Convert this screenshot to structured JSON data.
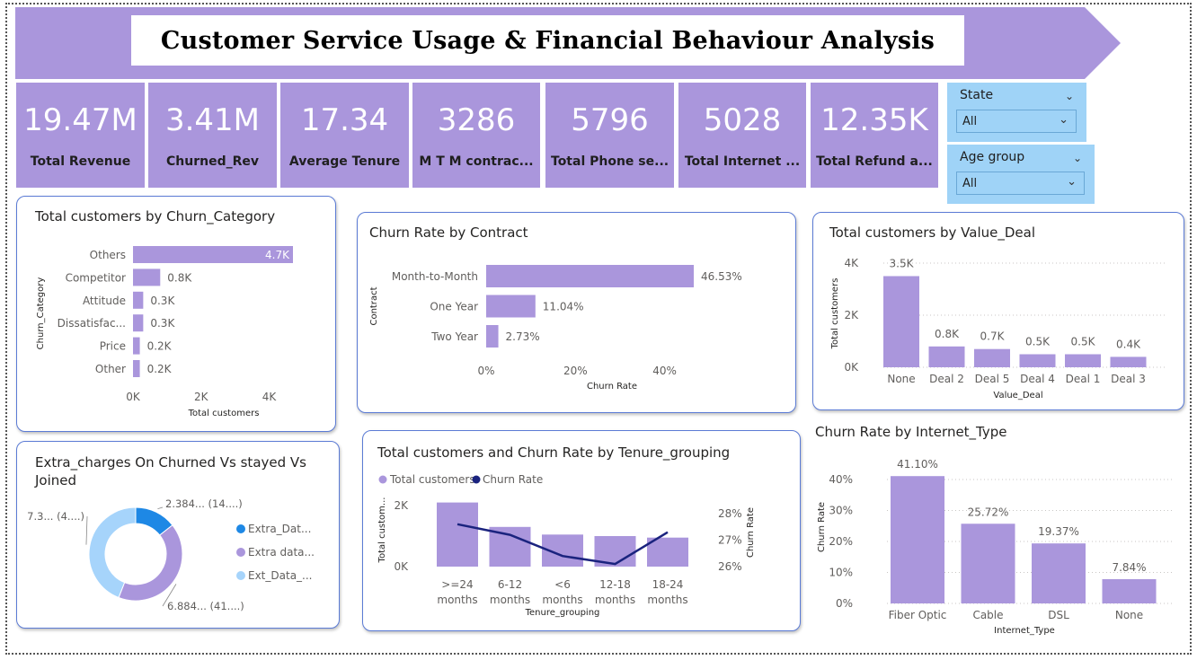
{
  "title": "Customer Service Usage & Financial Behaviour Analysis",
  "colors": {
    "bar": "#aa96dc",
    "line": "#1a237e",
    "slicer": "#9fd3f7",
    "donut": [
      "#1e88e5",
      "#aa96dc",
      "#a6d4fb"
    ]
  },
  "kpis": [
    {
      "value": "19.47M",
      "label": "Total Revenue"
    },
    {
      "value": "3.41M",
      "label": "Churned_Rev"
    },
    {
      "value": "17.34",
      "label": "Average Tenure"
    },
    {
      "value": "3286",
      "label": "M T M contrac..."
    },
    {
      "value": "5796",
      "label": "Total Phone se..."
    },
    {
      "value": "5028",
      "label": "Total Internet ..."
    },
    {
      "value": "12.35K",
      "label": "Total Refund a..."
    }
  ],
  "slicers": [
    {
      "label": "State",
      "value": "All"
    },
    {
      "label": "Age group",
      "value": "All"
    }
  ],
  "chart_data": [
    {
      "type": "bar",
      "orientation": "horizontal",
      "title": "Total customers by Churn_Category",
      "xlabel": "Total customers",
      "ylabel": "Churn_Category",
      "categories": [
        "Others",
        "Competitor",
        "Attitude",
        "Dissatisfac...",
        "Price",
        "Other"
      ],
      "values": [
        4700,
        800,
        300,
        300,
        200,
        200
      ],
      "data_labels": [
        "4.7K",
        "0.8K",
        "0.3K",
        "0.3K",
        "0.2K",
        "0.2K"
      ],
      "xticks": [
        "0K",
        "2K",
        "4K"
      ],
      "xlim": [
        0,
        4700
      ]
    },
    {
      "type": "bar",
      "orientation": "horizontal",
      "title": "Churn Rate by Contract",
      "xlabel": "Churn Rate",
      "ylabel": "Contract",
      "categories": [
        "Month-to-Month",
        "One Year",
        "Two Year"
      ],
      "values": [
        46.53,
        11.04,
        2.73
      ],
      "data_labels": [
        "46.53%",
        "11.04%",
        "2.73%"
      ],
      "xticks": [
        "0%",
        "20%",
        "40%"
      ],
      "xlim": [
        0,
        46.53
      ]
    },
    {
      "type": "bar",
      "title": "Total customers by Value_Deal",
      "xlabel": "Value_Deal",
      "ylabel": "Total customers",
      "categories": [
        "None",
        "Deal 2",
        "Deal 5",
        "Deal 4",
        "Deal 1",
        "Deal 3"
      ],
      "values": [
        3500,
        800,
        700,
        500,
        500,
        400
      ],
      "data_labels": [
        "3.5K",
        "0.8K",
        "0.7K",
        "0.5K",
        "0.5K",
        "0.4K"
      ],
      "yticks": [
        "0K",
        "2K",
        "4K"
      ],
      "ylim": [
        0,
        4000
      ]
    },
    {
      "type": "pie",
      "donut": true,
      "title": "Extra_charges On Churned Vs stayed Vs Joined",
      "legend": [
        "Extra_Dat...",
        "Extra data...",
        "Ext_Data_..."
      ],
      "values": [
        2.384,
        6.884,
        7.3
      ],
      "data_labels": [
        "2.384... (14....)",
        "6.884... (41....)",
        "7.3... (4....)"
      ]
    },
    {
      "type": "bar",
      "combo": "bar+line",
      "title": "Total customers and Churn Rate by Tenure_grouping",
      "xlabel": "Tenure_grouping",
      "ylabel": "Total custom...",
      "y2label": "Churn Rate",
      "legend": [
        "Total customers",
        "Churn Rate"
      ],
      "categories": [
        ">=24 months",
        "6-12 months",
        "<6 months",
        "12-18 months",
        "18-24 months"
      ],
      "category_lines": [
        [
          ">=24",
          "months"
        ],
        [
          "6-12",
          "months"
        ],
        [
          "<6",
          "months"
        ],
        [
          "12-18",
          "months"
        ],
        [
          "18-24",
          "months"
        ]
      ],
      "series": [
        {
          "name": "Total customers",
          "values": [
            2100,
            1300,
            1050,
            1000,
            950
          ]
        },
        {
          "name": "Churn Rate",
          "values": [
            27.6,
            27.2,
            26.4,
            26.1,
            27.3
          ]
        }
      ],
      "yticks": [
        "0K",
        "2K"
      ],
      "ylim": [
        0,
        2500
      ],
      "y2ticks": [
        "26%",
        "27%",
        "28%"
      ],
      "y2lim": [
        26,
        28
      ]
    },
    {
      "type": "bar",
      "title": "Churn Rate by Internet_Type",
      "xlabel": "Internet_Type",
      "ylabel": "Churn Rate",
      "categories": [
        "Fiber Optic",
        "Cable",
        "DSL",
        "None"
      ],
      "values": [
        41.1,
        25.72,
        19.37,
        7.84
      ],
      "data_labels": [
        "41.10%",
        "25.72%",
        "19.37%",
        "7.84%"
      ],
      "yticks": [
        "0%",
        "10%",
        "20%",
        "30%",
        "40%"
      ],
      "ylim": [
        0,
        45
      ]
    }
  ]
}
